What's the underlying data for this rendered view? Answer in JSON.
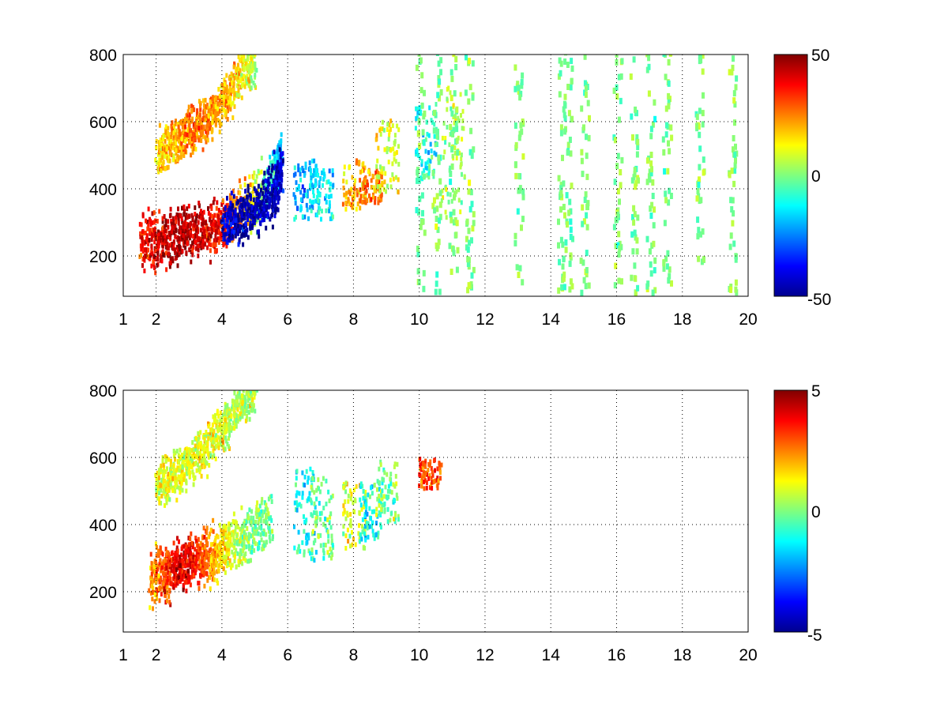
{
  "chart_data": [
    {
      "type": "heatmap",
      "title": "",
      "xlabel": "",
      "ylabel": "",
      "xlim": [
        1,
        20
      ],
      "ylim": [
        80,
        800
      ],
      "grid": true,
      "colormap": "jet",
      "xticks": [
        1,
        2,
        4,
        6,
        8,
        10,
        12,
        14,
        16,
        18,
        20
      ],
      "yticks": [
        200,
        400,
        600,
        800
      ],
      "colorbar": {
        "min": -50,
        "max": 50,
        "ticks": [
          50,
          0,
          -50
        ],
        "tick_labels": [
          "50",
          "0",
          "-50"
        ]
      },
      "features": {
        "lower_curve": [
          [
            1.5,
            225,
            35
          ],
          [
            2.0,
            235,
            40
          ],
          [
            2.5,
            245,
            45
          ],
          [
            3.0,
            258,
            45
          ],
          [
            3.5,
            270,
            40
          ],
          [
            4.0,
            290,
            35
          ],
          [
            4.5,
            320,
            25
          ],
          [
            5.0,
            360,
            10
          ],
          [
            5.5,
            420,
            -10
          ],
          [
            5.8,
            480,
            -20
          ]
        ],
        "blue_band": [
          [
            4.0,
            280,
            -40
          ],
          [
            4.5,
            300,
            -45
          ],
          [
            5.0,
            330,
            -45
          ],
          [
            5.5,
            380,
            -45
          ],
          [
            5.8,
            450,
            -40
          ]
        ],
        "upper_curve": [
          [
            2.0,
            500,
            15
          ],
          [
            2.5,
            530,
            20
          ],
          [
            3.0,
            560,
            25
          ],
          [
            3.5,
            600,
            25
          ],
          [
            4.0,
            650,
            20
          ],
          [
            4.5,
            720,
            15
          ],
          [
            5.0,
            780,
            5
          ]
        ],
        "blobs": [
          [
            6.5,
            300,
            480,
            -20
          ],
          [
            7.0,
            300,
            450,
            -15
          ],
          [
            8.0,
            330,
            480,
            20
          ],
          [
            8.5,
            350,
            450,
            25
          ],
          [
            9.0,
            380,
            600,
            10
          ],
          [
            10.2,
            420,
            650,
            -10
          ],
          [
            11.0,
            300,
            700,
            5
          ]
        ],
        "scatter_columns": [
          10,
          10.5,
          11,
          11.5,
          13,
          14.3,
          14.5,
          15,
          16,
          16.5,
          17,
          17.5,
          18.5,
          19.5
        ]
      }
    },
    {
      "type": "heatmap",
      "title": "",
      "xlabel": "",
      "ylabel": "",
      "xlim": [
        1,
        20
      ],
      "ylim": [
        80,
        800
      ],
      "grid": true,
      "colormap": "jet",
      "xticks": [
        1,
        2,
        4,
        6,
        8,
        10,
        12,
        14,
        16,
        18,
        20
      ],
      "yticks": [
        200,
        400,
        600,
        800
      ],
      "colorbar": {
        "min": -5,
        "max": 5,
        "ticks": [
          5,
          0,
          -5
        ],
        "tick_labels": [
          "5",
          "0",
          "-5"
        ]
      },
      "features": {
        "lower_curve": [
          [
            1.8,
            230,
            2
          ],
          [
            2.2,
            245,
            3
          ],
          [
            2.6,
            262,
            4
          ],
          [
            3.0,
            280,
            4
          ],
          [
            3.4,
            295,
            3
          ],
          [
            3.8,
            310,
            2
          ],
          [
            4.2,
            330,
            1
          ],
          [
            4.8,
            360,
            0
          ],
          [
            5.5,
            420,
            0
          ]
        ],
        "upper_curve": [
          [
            2.0,
            500,
            1
          ],
          [
            2.5,
            540,
            1
          ],
          [
            3.0,
            580,
            1
          ],
          [
            3.5,
            620,
            1
          ],
          [
            4.0,
            680,
            1
          ],
          [
            4.5,
            740,
            0.5
          ],
          [
            5.0,
            790,
            0.5
          ]
        ],
        "blobs": [
          [
            6.5,
            280,
            560,
            -1
          ],
          [
            7.0,
            290,
            540,
            0
          ],
          [
            8.0,
            320,
            520,
            1
          ],
          [
            8.5,
            340,
            520,
            -1
          ],
          [
            9.0,
            400,
            580,
            0
          ],
          [
            10.3,
            500,
            590,
            3
          ]
        ],
        "scatter_columns": []
      }
    }
  ]
}
